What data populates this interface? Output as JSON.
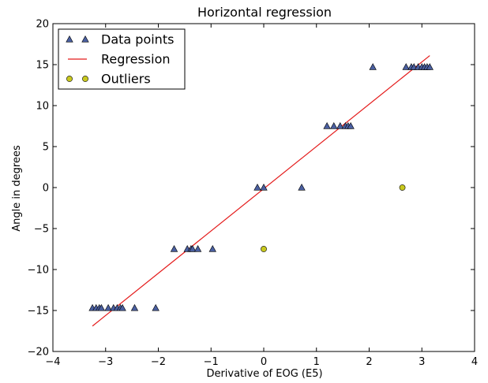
{
  "chart_data": {
    "type": "scatter",
    "title": "Horizontal regression",
    "xlabel": "Derivative of EOG (E5)",
    "ylabel": "Angle in degrees",
    "xlim": [
      -4,
      4
    ],
    "ylim": [
      -20,
      20
    ],
    "x_ticks": [
      -4,
      -3,
      -2,
      -1,
      0,
      1,
      2,
      3,
      4
    ],
    "y_ticks": [
      -20,
      -15,
      -10,
      -5,
      0,
      5,
      10,
      15,
      20
    ],
    "x_tick_labels": [
      "−4",
      "−3",
      "−2",
      "−1",
      "0",
      "1",
      "2",
      "3",
      "4"
    ],
    "y_tick_labels": [
      "−20",
      "−15",
      "−10",
      "−5",
      "0",
      "5",
      "10",
      "15",
      "20"
    ],
    "grid": false,
    "legend_position": "upper-left",
    "legend": [
      {
        "label": "Data points",
        "marker": "triangle",
        "color": "#4a5fa0"
      },
      {
        "label": "Regression",
        "marker": "line",
        "color": "#e41a1a"
      },
      {
        "label": "Outliers",
        "marker": "circle",
        "color": "#c8c81e"
      }
    ],
    "series": [
      {
        "name": "Data points",
        "marker": "triangle",
        "color": "#4a5fa0",
        "points": [
          [
            -3.25,
            -14.7
          ],
          [
            -3.18,
            -14.7
          ],
          [
            -3.12,
            -14.7
          ],
          [
            -3.08,
            -14.7
          ],
          [
            -2.95,
            -14.7
          ],
          [
            -2.85,
            -14.7
          ],
          [
            -2.78,
            -14.7
          ],
          [
            -2.72,
            -14.7
          ],
          [
            -2.68,
            -14.7
          ],
          [
            -2.45,
            -14.7
          ],
          [
            -2.05,
            -14.7
          ],
          [
            -1.7,
            -7.5
          ],
          [
            -1.45,
            -7.5
          ],
          [
            -1.38,
            -7.5
          ],
          [
            -1.35,
            -7.5
          ],
          [
            -1.25,
            -7.5
          ],
          [
            -0.97,
            -7.5
          ],
          [
            -0.12,
            0.0
          ],
          [
            0.0,
            0.0
          ],
          [
            0.72,
            0.0
          ],
          [
            1.2,
            7.5
          ],
          [
            1.33,
            7.5
          ],
          [
            1.45,
            7.5
          ],
          [
            1.55,
            7.5
          ],
          [
            1.6,
            7.5
          ],
          [
            1.65,
            7.5
          ],
          [
            2.07,
            14.7
          ],
          [
            2.7,
            14.7
          ],
          [
            2.8,
            14.7
          ],
          [
            2.85,
            14.7
          ],
          [
            2.93,
            14.7
          ],
          [
            3.0,
            14.7
          ],
          [
            3.05,
            14.7
          ],
          [
            3.1,
            14.7
          ],
          [
            3.15,
            14.7
          ]
        ]
      },
      {
        "name": "Regression",
        "marker": "line",
        "color": "#e41a1a",
        "points": [
          [
            -3.25,
            -16.9
          ],
          [
            3.15,
            16.1
          ]
        ]
      },
      {
        "name": "Outliers",
        "marker": "circle",
        "color": "#c8c81e",
        "points": [
          [
            0.0,
            -7.5
          ],
          [
            2.63,
            0.0
          ]
        ]
      }
    ]
  }
}
